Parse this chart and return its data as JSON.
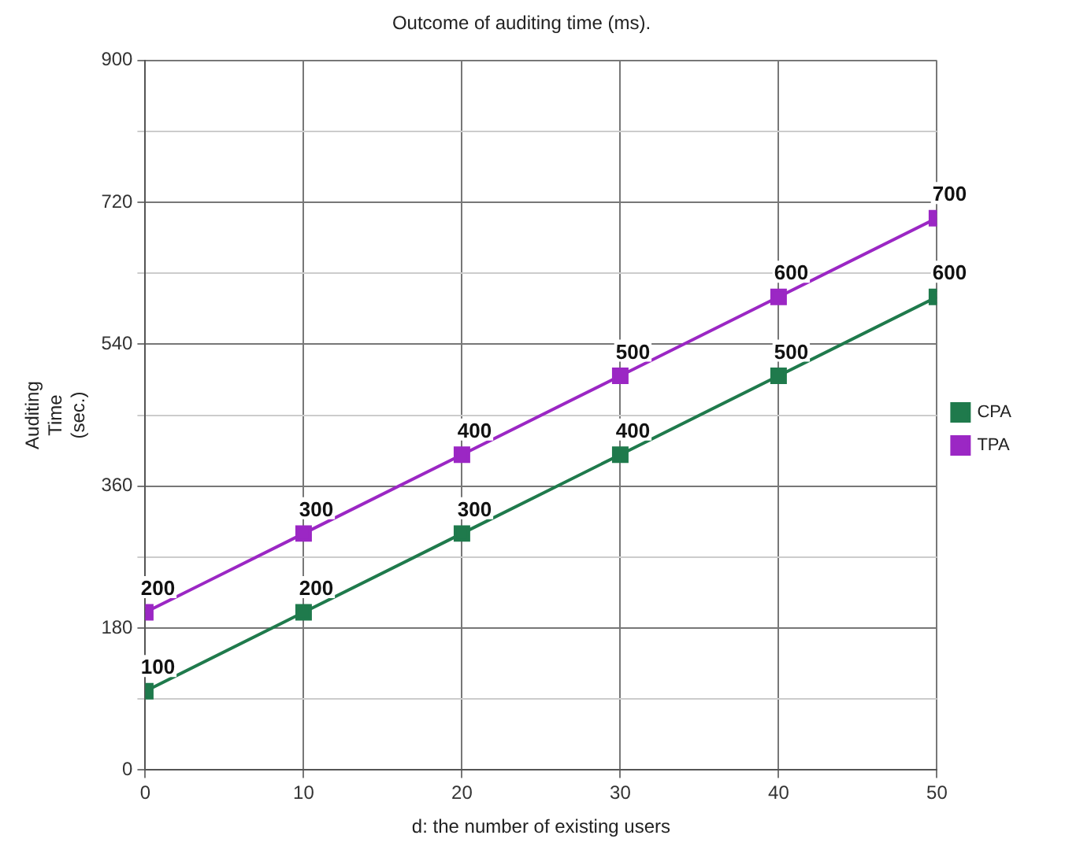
{
  "chart_data": {
    "type": "line",
    "title": "Outcome of auditing time (ms).",
    "xlabel": "d: the number of existing users",
    "ylabel": "Auditing Time (sec.)",
    "x": [
      0,
      10,
      20,
      30,
      40,
      50
    ],
    "series": [
      {
        "name": "CPA",
        "color": "#1f7a4c",
        "values": [
          100,
          200,
          300,
          400,
          500,
          600
        ]
      },
      {
        "name": "TPA",
        "color": "#9b27c4",
        "values": [
          200,
          300,
          400,
          500,
          600,
          700
        ]
      }
    ],
    "xlim": [
      0,
      50
    ],
    "xticks": [
      0,
      10,
      20,
      30,
      40,
      50
    ],
    "ylim": [
      0,
      900
    ],
    "yticks": [
      0,
      {
        "value": 90,
        "label": null
      },
      180,
      {
        "value": 270,
        "label": null
      },
      360,
      {
        "value": 450,
        "label": null
      },
      540,
      {
        "value": 630,
        "label": null
      },
      720,
      {
        "value": 810,
        "label": null
      },
      900
    ],
    "grid": true,
    "legend": "right",
    "marker": "square",
    "line_style": "solid",
    "data_labels": true
  }
}
